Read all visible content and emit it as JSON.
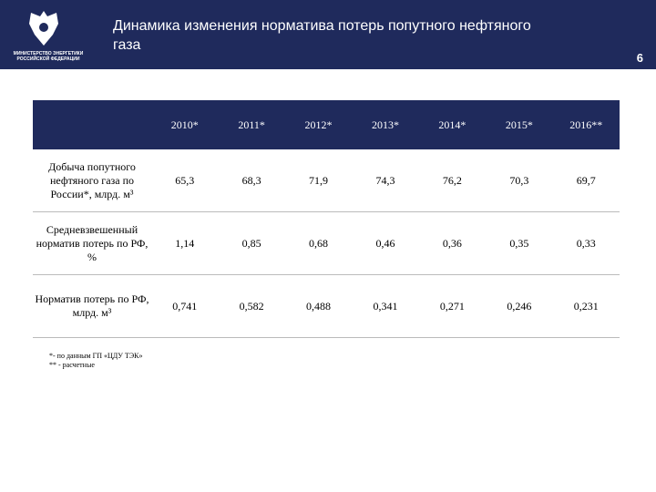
{
  "header": {
    "ministry": "МИНИСТЕРСТВО ЭНЕРГЕТИКИ РОССИЙСКОЙ ФЕДЕРАЦИИ",
    "title": "Динамика изменения норматива потерь попутного нефтяного газа",
    "page": "6"
  },
  "table": {
    "columns": [
      "2010*",
      "2011*",
      "2012*",
      "2013*",
      "2014*",
      "2015*",
      "2016**"
    ],
    "rows": [
      {
        "label": "Добыча попутного нефтяного газа по России*, млрд. м³",
        "values": [
          "65,3",
          "68,3",
          "71,9",
          "74,3",
          "76,2",
          "70,3",
          "69,7"
        ]
      },
      {
        "label": "Средневзвешенный норматив потерь по РФ, %",
        "values": [
          "1,14",
          "0,85",
          "0,68",
          "0,46",
          "0,36",
          "0,35",
          "0,33"
        ]
      },
      {
        "label": "Норматив потерь по РФ, млрд. м³",
        "values": [
          "0,741",
          "0,582",
          "0,488",
          "0,341",
          "0,271",
          "0,246",
          "0,231"
        ]
      }
    ]
  },
  "footnotes": [
    "*- по данным ГП «ЦДУ ТЭК»",
    "** - расчетные"
  ]
}
